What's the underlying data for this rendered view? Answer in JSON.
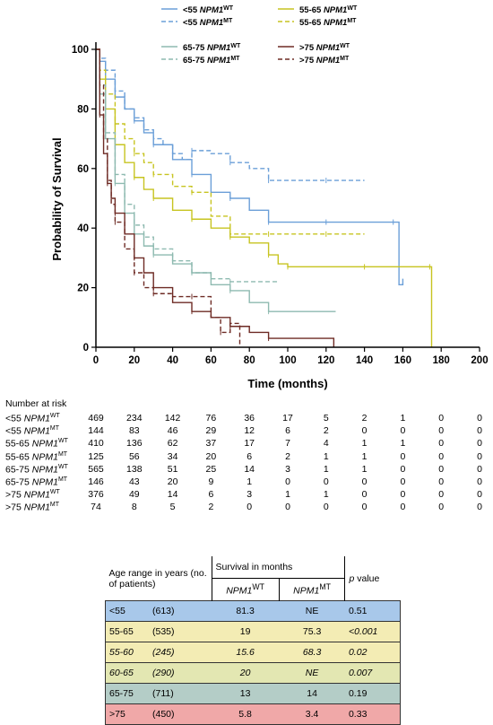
{
  "chart_data": {
    "type": "line",
    "xlabel": "Time (months)",
    "ylabel": "Probability of Survival",
    "xlim": [
      0,
      200
    ],
    "ylim": [
      0,
      100
    ],
    "xticks": [
      "0",
      "20",
      "40",
      "60",
      "80",
      "100",
      "120",
      "140",
      "160",
      "180",
      "200"
    ],
    "yticks": [
      "0",
      "20",
      "40",
      "60",
      "80",
      "100"
    ],
    "legend_position": "top",
    "series": [
      {
        "name": "<55 NPM1",
        "superscript": "WT",
        "color": "#6b9fd8",
        "dash": false,
        "x": [
          0,
          2,
          5,
          10,
          15,
          20,
          25,
          30,
          40,
          50,
          60,
          70,
          80,
          90,
          100,
          120,
          140,
          155,
          158,
          160
        ],
        "y": [
          100,
          96,
          90,
          84,
          80,
          76,
          72,
          68,
          63,
          58,
          52,
          50,
          46,
          42,
          42,
          42,
          42,
          42,
          21,
          23
        ]
      },
      {
        "name": "<55 NPM1",
        "superscript": "MT",
        "color": "#6b9fd8",
        "dash": true,
        "x": [
          0,
          2,
          5,
          10,
          15,
          20,
          25,
          30,
          35,
          40,
          45,
          50,
          60,
          70,
          80,
          90,
          100,
          120,
          140
        ],
        "y": [
          100,
          97,
          93,
          86,
          80,
          77,
          73,
          70,
          68,
          65,
          63,
          66,
          65,
          62,
          60,
          56,
          56,
          56,
          56
        ]
      },
      {
        "name": "55-65 NPM1",
        "superscript": "WT",
        "color": "#c7c420",
        "dash": false,
        "x": [
          0,
          2,
          5,
          10,
          15,
          20,
          25,
          30,
          40,
          50,
          60,
          70,
          80,
          90,
          95,
          100,
          120,
          140,
          160,
          174,
          175
        ],
        "y": [
          100,
          90,
          80,
          68,
          62,
          57,
          53,
          50,
          46,
          43,
          40,
          37,
          35,
          31,
          28,
          27,
          27,
          27,
          27,
          27,
          0
        ]
      },
      {
        "name": "55-65 NPM1",
        "superscript": "MT",
        "color": "#c7c420",
        "dash": true,
        "x": [
          0,
          2,
          5,
          10,
          15,
          20,
          25,
          30,
          40,
          50,
          60,
          70,
          80,
          90,
          100,
          120,
          140
        ],
        "y": [
          100,
          93,
          85,
          75,
          70,
          65,
          62,
          58,
          54,
          52,
          44,
          38,
          38,
          38,
          38,
          38,
          38
        ]
      },
      {
        "name": "65-75 NPM1",
        "superscript": "WT",
        "color": "#8ebab0",
        "dash": false,
        "x": [
          0,
          2,
          5,
          10,
          15,
          20,
          25,
          30,
          40,
          50,
          60,
          70,
          80,
          90,
          100,
          125
        ],
        "y": [
          100,
          85,
          70,
          55,
          45,
          38,
          34,
          31,
          28,
          25,
          21,
          19,
          15,
          12,
          12,
          12
        ]
      },
      {
        "name": "65-75 NPM1",
        "superscript": "MT",
        "color": "#8ebab0",
        "dash": true,
        "x": [
          0,
          2,
          5,
          10,
          15,
          20,
          25,
          30,
          40,
          50,
          60,
          70,
          80,
          95
        ],
        "y": [
          100,
          88,
          72,
          58,
          48,
          41,
          37,
          33,
          29,
          25,
          23,
          22,
          22,
          22
        ]
      },
      {
        "name": ">75 NPM1",
        "superscript": "WT",
        "color": "#6e2b25",
        "dash": false,
        "x": [
          0,
          2,
          4,
          6,
          8,
          10,
          15,
          20,
          25,
          30,
          40,
          50,
          60,
          70,
          80,
          90,
          100,
          124
        ],
        "y": [
          100,
          78,
          65,
          55,
          50,
          45,
          38,
          30,
          25,
          20,
          15,
          12,
          10,
          7,
          5,
          3,
          3,
          0
        ]
      },
      {
        "name": ">75 NPM1",
        "superscript": "MT",
        "color": "#6e2b25",
        "dash": true,
        "x": [
          0,
          2,
          4,
          6,
          8,
          10,
          15,
          20,
          25,
          30,
          40,
          50,
          60,
          65,
          70,
          75
        ],
        "y": [
          100,
          88,
          70,
          56,
          48,
          42,
          33,
          25,
          20,
          18,
          17,
          17,
          10,
          5,
          8,
          0
        ]
      }
    ]
  },
  "risk_table": {
    "title": "Number at risk",
    "times": [
      0,
      20,
      40,
      60,
      80,
      100,
      120,
      140,
      160,
      180,
      200
    ],
    "rows": [
      {
        "label": "<55 NPM1",
        "sup": "WT",
        "values": [
          "469",
          "234",
          "142",
          "76",
          "36",
          "17",
          "5",
          "2",
          "1",
          "0",
          "0"
        ]
      },
      {
        "label": "<55 NPM1",
        "sup": "MT",
        "values": [
          "144",
          "83",
          "46",
          "29",
          "12",
          "6",
          "2",
          "0",
          "0",
          "0",
          "0"
        ]
      },
      {
        "label": "55-65 NPM1",
        "sup": "WT",
        "values": [
          "410",
          "136",
          "62",
          "37",
          "17",
          "7",
          "4",
          "1",
          "1",
          "0",
          "0"
        ]
      },
      {
        "label": "55-65 NPM1",
        "sup": "MT",
        "values": [
          "125",
          "56",
          "34",
          "20",
          "6",
          "2",
          "1",
          "1",
          "0",
          "0",
          "0"
        ]
      },
      {
        "label": "65-75 NPM1",
        "sup": "WT",
        "values": [
          "565",
          "138",
          "51",
          "25",
          "14",
          "3",
          "1",
          "1",
          "0",
          "0",
          "0"
        ]
      },
      {
        "label": "65-75 NPM1",
        "sup": "MT",
        "values": [
          "146",
          "43",
          "20",
          "9",
          "1",
          "0",
          "0",
          "0",
          "0",
          "0",
          "0"
        ]
      },
      {
        "label": ">75 NPM1",
        "sup": "WT",
        "values": [
          "376",
          "49",
          "14",
          "6",
          "3",
          "1",
          "1",
          "0",
          "0",
          "0",
          "0"
        ]
      },
      {
        "label": ">75 NPM1",
        "sup": "MT",
        "values": [
          "74",
          "8",
          "5",
          "2",
          "0",
          "0",
          "0",
          "0",
          "0",
          "0",
          "0"
        ]
      }
    ]
  },
  "summary_table": {
    "header": {
      "age": "Age range in years (no. of patients)",
      "survival": "Survival in months",
      "wt": "NPM1",
      "wt_sup": "WT",
      "mt": "NPM1",
      "mt_sup": "MT",
      "p": "p value"
    },
    "rows": [
      {
        "age": "<55",
        "n": "(613)",
        "wt": "81.3",
        "mt": "NE",
        "p": "0.51",
        "bg": "#a8c8ea",
        "italic": false,
        "p_italic": false
      },
      {
        "age": "55-65",
        "n": "(535)",
        "wt": "19",
        "mt": "75.3",
        "p": "<0.001",
        "bg": "#f3ecb4",
        "italic": false,
        "p_italic": true
      },
      {
        "age": "55-60",
        "n": "(245)",
        "wt": "15.6",
        "mt": "68.3",
        "p": "0.02",
        "bg": "#f3ecb4",
        "italic": true,
        "p_italic": false
      },
      {
        "age": "60-65",
        "n": "(290)",
        "wt": "20",
        "mt": "NE",
        "p": "0.007",
        "bg": "#e3e7b2",
        "italic": true,
        "p_italic": false
      },
      {
        "age": "65-75",
        "n": "(711)",
        "wt": "13",
        "mt": "14",
        "p": "0.19",
        "bg": "#b4cdc7",
        "italic": false,
        "p_italic": false
      },
      {
        "age": ">75",
        "n": "(450)",
        "wt": "5.8",
        "mt": "3.4",
        "p": "0.33",
        "bg": "#f0a8a8",
        "italic": false,
        "p_italic": false
      }
    ]
  }
}
